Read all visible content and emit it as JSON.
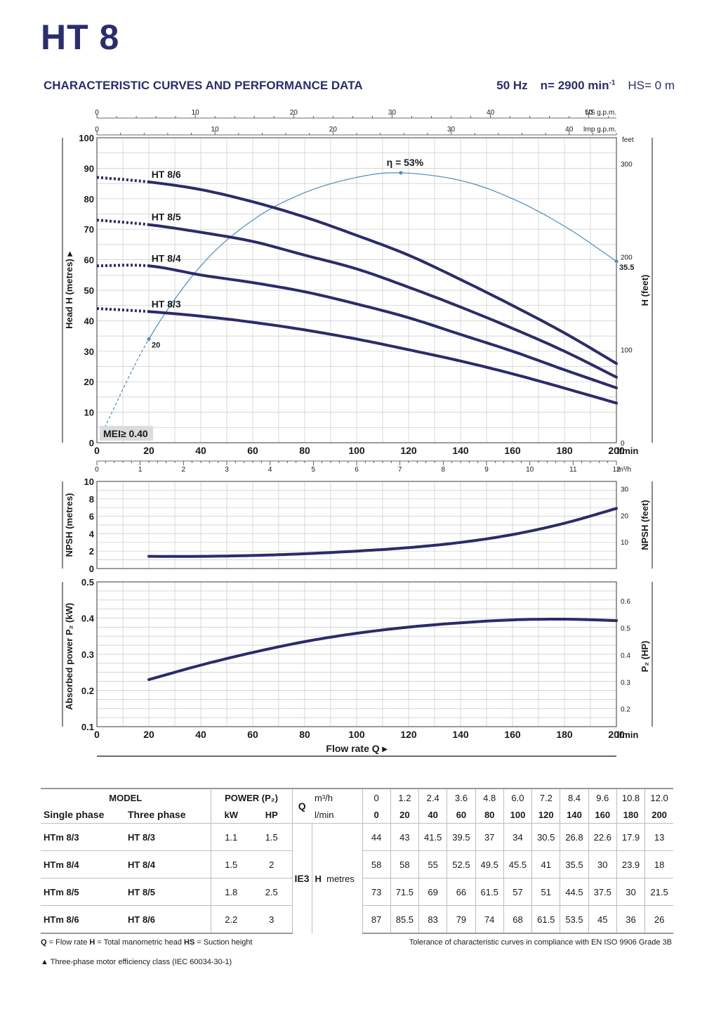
{
  "title": "HT 8",
  "section_title": "CHARACTERISTIC CURVES AND PERFORMANCE DATA",
  "operating": {
    "freq": "50 Hz",
    "speed": "n= 2900 min",
    "speed_sup": "-1",
    "hs": "HS= 0 m"
  },
  "colors": {
    "curve": "#2b2b6b",
    "efficiency": "#4a8fc0",
    "grid": "#c8c8c8",
    "text": "#2b2d6e"
  },
  "chart_data": [
    {
      "type": "line",
      "title": "",
      "xlabel": "l/min",
      "ylabel": "Head H (metres)",
      "y2label": "H (feet)",
      "xlim": [
        0,
        200
      ],
      "ylim": [
        0,
        100
      ],
      "y2lim": [
        0,
        328
      ],
      "x_ticks": [
        0,
        20,
        40,
        60,
        80,
        100,
        120,
        140,
        160,
        180,
        200
      ],
      "y_ticks": [
        0,
        10,
        20,
        30,
        40,
        50,
        60,
        70,
        80,
        90,
        100
      ],
      "y2_ticks": [
        0,
        100,
        200,
        300
      ],
      "y2_label_top": "feet",
      "top_axes": [
        {
          "label": "US g.p.m.",
          "ticks": [
            0,
            10,
            20,
            30,
            40,
            50
          ],
          "max": 52.8
        },
        {
          "label": "Imp g.p.m.",
          "ticks": [
            0,
            10,
            20,
            30,
            40
          ],
          "max": 44
        }
      ],
      "bottom_axis2": {
        "label": "m³/h",
        "ticks": [
          0,
          1,
          2,
          3,
          4,
          5,
          6,
          7,
          8,
          9,
          10,
          11,
          12
        ],
        "max": 12
      },
      "grid": true,
      "series": [
        {
          "name": "HT 8/6",
          "x": [
            0,
            20,
            40,
            60,
            80,
            100,
            120,
            140,
            160,
            180,
            200
          ],
          "y": [
            87,
            85.5,
            83,
            79,
            74,
            68,
            61.5,
            53.5,
            45,
            36,
            26
          ]
        },
        {
          "name": "HT 8/5",
          "x": [
            0,
            20,
            40,
            60,
            80,
            100,
            120,
            140,
            160,
            180,
            200
          ],
          "y": [
            73,
            71.5,
            69,
            66,
            61.5,
            57,
            51,
            44.5,
            37.5,
            30,
            21.5
          ]
        },
        {
          "name": "HT 8/4",
          "x": [
            0,
            20,
            40,
            60,
            80,
            100,
            120,
            140,
            160,
            180,
            200
          ],
          "y": [
            58,
            58,
            55,
            52.5,
            49.5,
            45.5,
            41,
            35.5,
            30,
            23.9,
            18
          ]
        },
        {
          "name": "HT 8/3",
          "x": [
            0,
            20,
            40,
            60,
            80,
            100,
            120,
            140,
            160,
            180,
            200
          ],
          "y": [
            44,
            43,
            41.5,
            39.5,
            37,
            34,
            30.5,
            26.8,
            22.6,
            17.9,
            13
          ]
        }
      ],
      "efficiency": {
        "label": "η = 53%",
        "points": [
          [
            3,
            5
          ],
          [
            20,
            34
          ],
          [
            40,
            58
          ],
          [
            60,
            73
          ],
          [
            80,
            82
          ],
          [
            100,
            87
          ],
          [
            117,
            88.5
          ],
          [
            140,
            86
          ],
          [
            160,
            80
          ],
          [
            180,
            71
          ],
          [
            200,
            59.5
          ]
        ],
        "labels": [
          {
            "x": 20,
            "y": 34,
            "text": "20"
          },
          {
            "x": 200,
            "y": 59.5,
            "text": "35.5"
          }
        ]
      },
      "annotation": "MEI≥ 0.40"
    },
    {
      "type": "line",
      "title": "",
      "xlabel": "",
      "ylabel": "NPSH (metres)",
      "y2label": "NPSH (feet)",
      "xlim": [
        0,
        200
      ],
      "ylim": [
        0,
        10
      ],
      "y_ticks": [
        0,
        2,
        4,
        6,
        8,
        10
      ],
      "y2_ticks": [
        10,
        20,
        30
      ],
      "grid": true,
      "series": [
        {
          "name": "NPSH",
          "x": [
            20,
            40,
            60,
            80,
            100,
            120,
            140,
            160,
            180,
            200
          ],
          "y": [
            1.4,
            1.4,
            1.5,
            1.7,
            2.0,
            2.4,
            3.0,
            3.9,
            5.2,
            6.9
          ]
        }
      ]
    },
    {
      "type": "line",
      "title": "",
      "xlabel": "Flow rate Q",
      "ylabel": "Absorbed power P₂ (kW)",
      "y2label": "P₂ (HP)",
      "xlim": [
        0,
        200
      ],
      "ylim": [
        0.1,
        0.5
      ],
      "x_ticks": [
        0,
        20,
        40,
        60,
        80,
        100,
        120,
        140,
        160,
        180,
        200
      ],
      "y_ticks": [
        0.1,
        0.2,
        0.3,
        0.4,
        0.5
      ],
      "y2_ticks": [
        0.2,
        0.3,
        0.4,
        0.5,
        0.6
      ],
      "x_unit": "l/min",
      "grid": true,
      "series": [
        {
          "name": "P2",
          "x": [
            20,
            40,
            60,
            80,
            100,
            120,
            140,
            160,
            180,
            200
          ],
          "y": [
            0.23,
            0.27,
            0.305,
            0.335,
            0.358,
            0.375,
            0.387,
            0.395,
            0.397,
            0.393
          ]
        }
      ]
    }
  ],
  "table": {
    "model_header": "MODEL",
    "single_phase_header": "Single phase",
    "three_phase_header": "Three phase",
    "power_header": "POWER (P₂)",
    "kw_header": "kW",
    "hp_header": "HP",
    "triangle": "▲",
    "q_label": "Q",
    "q_unit_m3h": "m³/h",
    "q_unit_lmin": "l/min",
    "q_m3h": [
      "0",
      "1.2",
      "2.4",
      "3.6",
      "4.8",
      "6.0",
      "7.2",
      "8.4",
      "9.6",
      "10.8",
      "12.0"
    ],
    "q_lmin": [
      "0",
      "20",
      "40",
      "60",
      "80",
      "100",
      "120",
      "140",
      "160",
      "180",
      "200"
    ],
    "ie_class": "IE3",
    "h_label": "H",
    "h_unit": "metres",
    "rows": [
      {
        "single": "HTm 8/3",
        "three": "HT 8/3",
        "kw": "1.1",
        "hp": "1.5",
        "h": [
          "44",
          "43",
          "41.5",
          "39.5",
          "37",
          "34",
          "30.5",
          "26.8",
          "22.6",
          "17.9",
          "13"
        ]
      },
      {
        "single": "HTm 8/4",
        "three": "HT 8/4",
        "kw": "1.5",
        "hp": "2",
        "h": [
          "58",
          "58",
          "55",
          "52.5",
          "49.5",
          "45.5",
          "41",
          "35.5",
          "30",
          "23.9",
          "18"
        ]
      },
      {
        "single": "HTm 8/5",
        "three": "HT 8/5",
        "kw": "1.8",
        "hp": "2.5",
        "h": [
          "73",
          "71.5",
          "69",
          "66",
          "61.5",
          "57",
          "51",
          "44.5",
          "37.5",
          "30",
          "21.5"
        ]
      },
      {
        "single": "HTm 8/6",
        "three": "HT 8/6",
        "kw": "2.2",
        "hp": "3",
        "h": [
          "87",
          "85.5",
          "83",
          "79",
          "74",
          "68",
          "61.5",
          "53.5",
          "45",
          "36",
          "26"
        ]
      }
    ]
  },
  "notes": {
    "legend_q": "Q",
    "legend_q_text": " = Flow rate  ",
    "legend_h": "H",
    "legend_h_text": " = Total manometric head  ",
    "legend_hs": "HS",
    "legend_hs_text": " = Suction height",
    "tolerance": "Tolerance of characteristic curves in compliance with EN ISO 9906 Grade 3B",
    "motor_class": "▲  Three-phase motor efficiency class (IEC 60034-30-1)"
  }
}
